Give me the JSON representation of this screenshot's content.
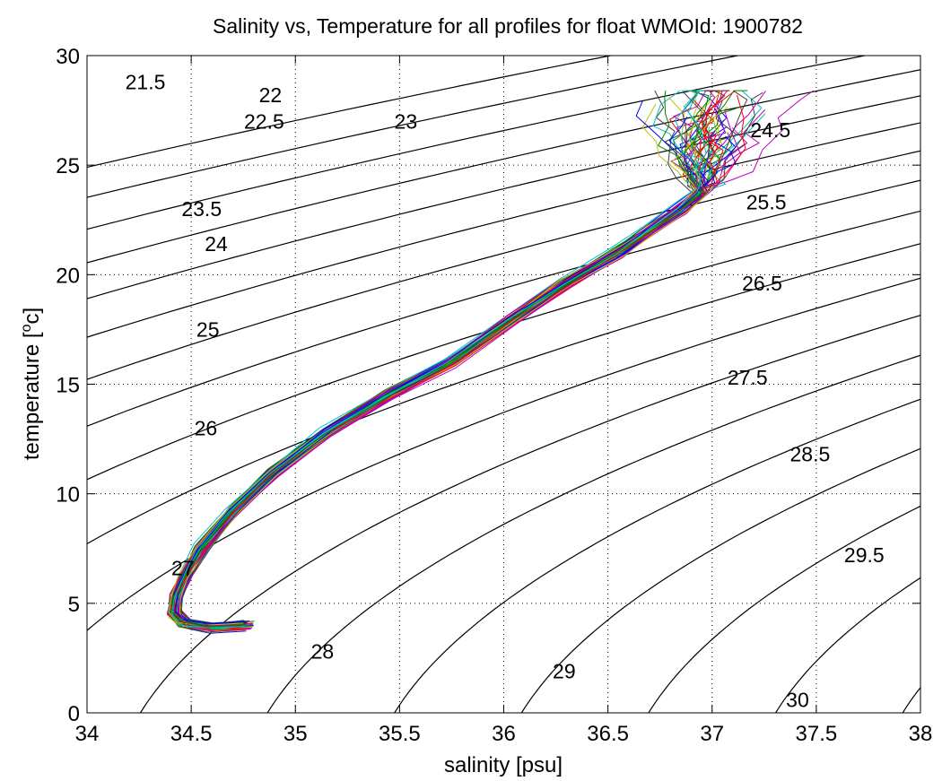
{
  "chart_data": {
    "type": "line",
    "title": "Salinity vs, Temperature for all profiles for float WMOId: 1900782",
    "xlabel": "salinity [psu]",
    "ylabel_main": "temperature [",
    "ylabel_sup": "o",
    "ylabel_end": "c]",
    "xlim": [
      34,
      38
    ],
    "ylim": [
      0,
      30
    ],
    "xticks": [
      34,
      34.5,
      35,
      35.5,
      36,
      36.5,
      37,
      37.5,
      38
    ],
    "xtick_labels": [
      "34",
      "34.5",
      "35",
      "35.5",
      "36",
      "36.5",
      "37",
      "37.5",
      "38"
    ],
    "yticks": [
      0,
      5,
      10,
      15,
      20,
      25,
      30
    ],
    "ytick_labels": [
      "0",
      "5",
      "10",
      "15",
      "20",
      "25",
      "30"
    ],
    "grid": true,
    "density_contours": {
      "levels": [
        21.5,
        22,
        22.5,
        23,
        23.5,
        24,
        24.5,
        25,
        25.5,
        26,
        26.5,
        27,
        27.5,
        28,
        28.5,
        29,
        29.5,
        30
      ],
      "labels": [
        {
          "text": "21.5",
          "s": 34.28,
          "t": 28.8
        },
        {
          "text": "22",
          "s": 34.88,
          "t": 28.2
        },
        {
          "text": "22.5",
          "s": 34.85,
          "t": 27.0
        },
        {
          "text": "23",
          "s": 35.53,
          "t": 27.0
        },
        {
          "text": "23.5",
          "s": 34.55,
          "t": 23.0
        },
        {
          "text": "24",
          "s": 34.62,
          "t": 21.4
        },
        {
          "text": "24.5",
          "s": 37.28,
          "t": 26.6
        },
        {
          "text": "25",
          "s": 34.58,
          "t": 17.5
        },
        {
          "text": "25.5",
          "s": 37.26,
          "t": 23.3
        },
        {
          "text": "26",
          "s": 34.57,
          "t": 13.0
        },
        {
          "text": "26.5",
          "s": 37.24,
          "t": 19.6
        },
        {
          "text": "27",
          "s": 34.46,
          "t": 6.6
        },
        {
          "text": "27.5",
          "s": 37.17,
          "t": 15.3
        },
        {
          "text": "28",
          "s": 35.13,
          "t": 2.8
        },
        {
          "text": "28.5",
          "s": 37.47,
          "t": 11.8
        },
        {
          "text": "29",
          "s": 36.29,
          "t": 1.9
        },
        {
          "text": "29.5",
          "s": 37.73,
          "t": 7.2
        },
        {
          "text": "30",
          "s": 37.41,
          "t": 0.6
        }
      ]
    },
    "profiles": {
      "count": 60,
      "colors": [
        "#0000ff",
        "#ff0000",
        "#008000",
        "#00bfbf",
        "#bf00bf",
        "#bfbf00",
        "#404040"
      ]
    }
  }
}
